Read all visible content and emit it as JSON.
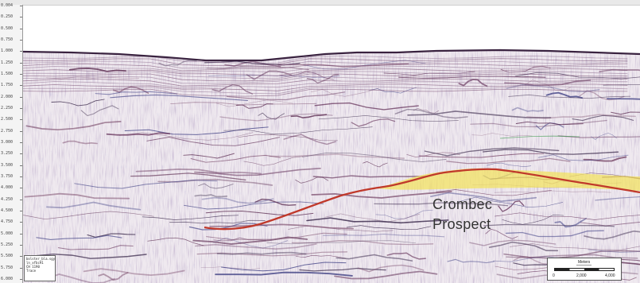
{
  "time_axis": {
    "ticks": [
      "0.004",
      "0.250",
      "0.500",
      "0.750",
      "1.000",
      "1.250",
      "1.500",
      "1.750",
      "2.000",
      "2.250",
      "2.500",
      "2.750",
      "3.000",
      "3.250",
      "3.500",
      "3.750",
      "4.000",
      "4.250",
      "4.500",
      "4.750",
      "5.000",
      "5.250",
      "5.500",
      "5.750",
      "6.000"
    ]
  },
  "annotation": {
    "prospect_label": "Crombec\nProspect"
  },
  "info_box": {
    "lines": [
      "bolster_bla.sgy",
      "ln_xfbc91",
      "CH 1190",
      "Trace"
    ]
  },
  "scale_bar": {
    "unit": "Meters",
    "labels": [
      "0",
      "2,000",
      "4,000"
    ]
  },
  "colors": {
    "horizon_red": "#c0392b",
    "prospect_fill": "#f3e35a",
    "seafloor": "#3a2340",
    "trace_dark": "#5a2a4f",
    "trace_blue": "#6a6ab0"
  }
}
